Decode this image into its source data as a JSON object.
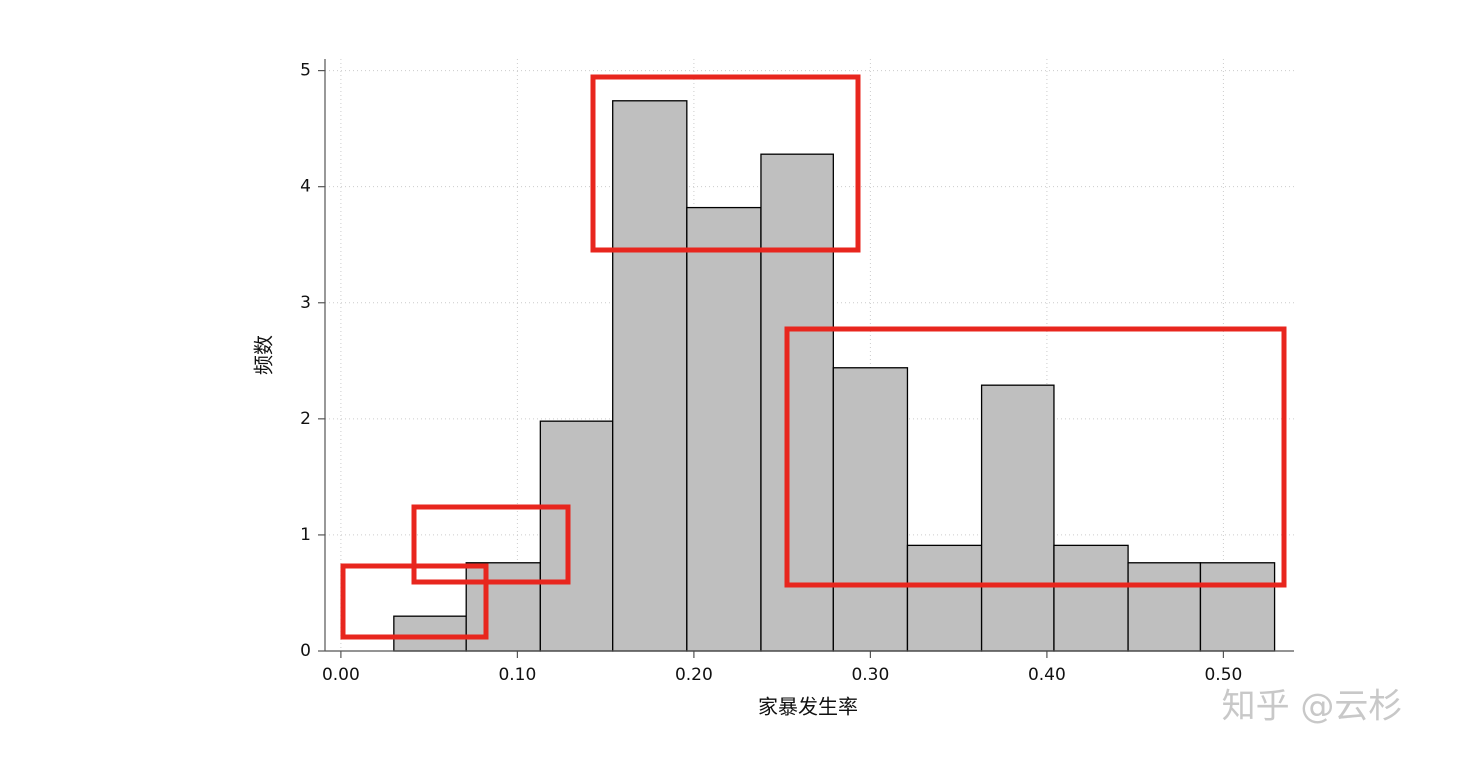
{
  "chart_data": {
    "type": "histogram",
    "x_label": "家暴发生率",
    "y_label": "频数",
    "watermark": "知乎 @云杉",
    "bins": [
      0.03,
      0.071,
      0.113,
      0.154,
      0.196,
      0.238,
      0.279,
      0.321,
      0.363,
      0.404,
      0.446,
      0.487,
      0.529
    ],
    "values": [
      0.3,
      0.76,
      1.98,
      4.74,
      3.82,
      4.28,
      2.44,
      0.91,
      2.29,
      0.91,
      0.76,
      0.76
    ],
    "color": "#bfbfbf",
    "xlim": [
      -0.009,
      0.54
    ],
    "xticks": [
      {
        "value": 0,
        "label": "0.00"
      },
      {
        "value": 0.1,
        "label": "0.10"
      },
      {
        "value": 0.2,
        "label": "0.20"
      },
      {
        "value": 0.3,
        "label": "0.30"
      },
      {
        "value": 0.4,
        "label": "0.40"
      },
      {
        "value": 0.5,
        "label": "0.50"
      }
    ],
    "ylim": [
      0,
      5.1
    ],
    "yticks": [
      0,
      1,
      2,
      3,
      4,
      5
    ],
    "grid": true
  }
}
